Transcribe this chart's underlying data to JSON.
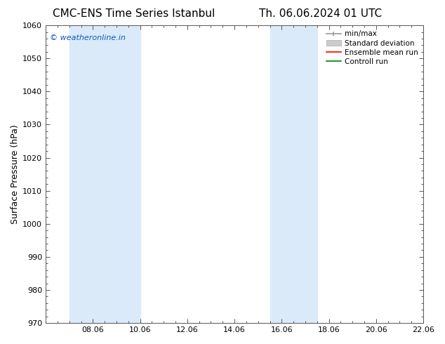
{
  "title_left": "CMC-ENS Time Series Istanbul",
  "title_right": "Th. 06.06.2024 01 UTC",
  "ylabel": "Surface Pressure (hPa)",
  "ylim": [
    970,
    1060
  ],
  "yticks": [
    970,
    980,
    990,
    1000,
    1010,
    1020,
    1030,
    1040,
    1050,
    1060
  ],
  "x_min": 0,
  "x_max": 16,
  "xtick_labels": [
    "08.06",
    "10.06",
    "12.06",
    "14.06",
    "16.06",
    "18.06",
    "20.06",
    "22.06"
  ],
  "xtick_positions": [
    2,
    4,
    6,
    8,
    10,
    12,
    14,
    16
  ],
  "shaded_regions": [
    {
      "x_start": 1.0,
      "x_end": 2.0,
      "color": "#daeaf8"
    },
    {
      "x_start": 2.0,
      "x_end": 4.0,
      "color": "#daeaf8"
    },
    {
      "x_start": 9.5,
      "x_end": 10.5,
      "color": "#daeaf8"
    },
    {
      "x_start": 10.5,
      "x_end": 11.5,
      "color": "#daeaf8"
    }
  ],
  "watermark_text": "© weatheronline.in",
  "watermark_color": "#1155bb",
  "legend_items": [
    {
      "label": "min/max",
      "color": "#aaaaaa",
      "type": "minmax"
    },
    {
      "label": "Standard deviation",
      "color": "#cccccc",
      "type": "stddev"
    },
    {
      "label": "Ensemble mean run",
      "color": "red",
      "type": "line"
    },
    {
      "label": "Controll run",
      "color": "green",
      "type": "line"
    }
  ],
  "bg_color": "#ffffff",
  "plot_bg_color": "#ffffff",
  "title_fontsize": 11,
  "ylabel_fontsize": 9,
  "tick_fontsize": 8,
  "watermark_fontsize": 8,
  "legend_fontsize": 7.5
}
